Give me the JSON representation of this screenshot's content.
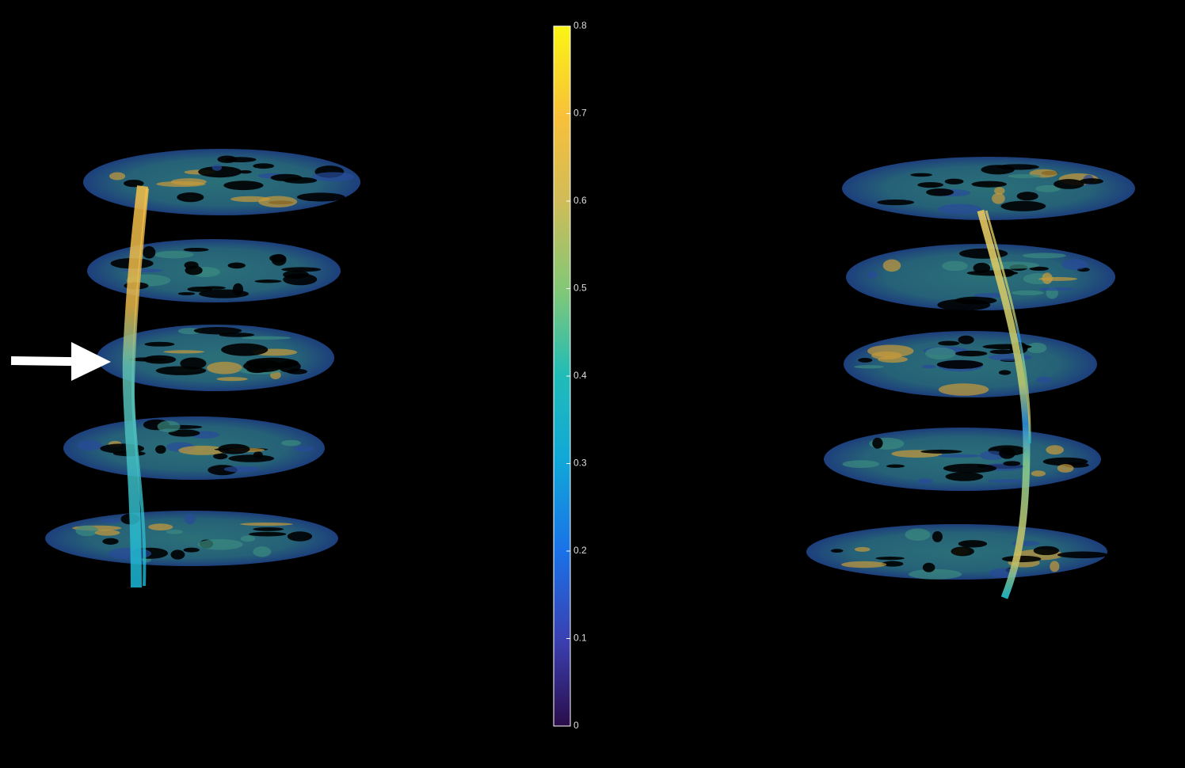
{
  "colorbar": {
    "lim": [
      0,
      0.8
    ],
    "ticks": [
      0,
      0.1,
      0.2,
      0.3,
      0.4,
      0.5,
      0.6,
      0.7,
      0.8
    ]
  }
}
